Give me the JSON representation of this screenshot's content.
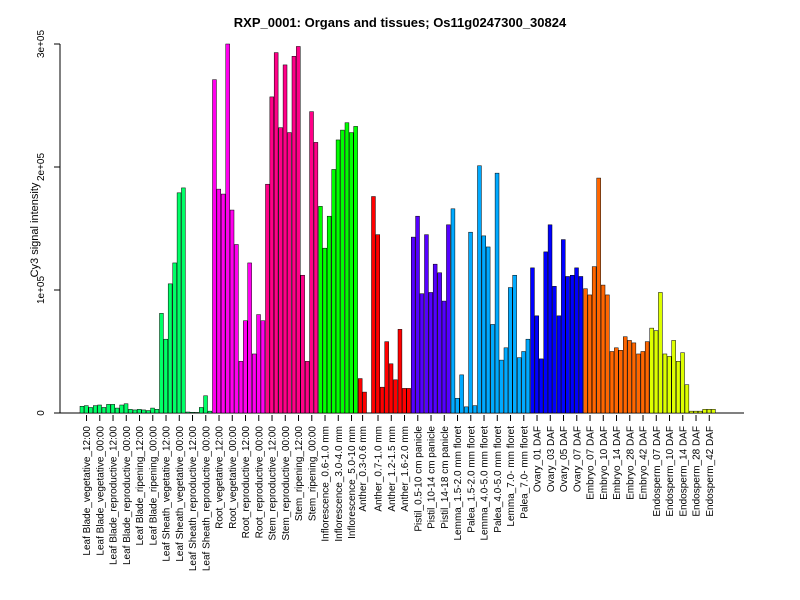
{
  "chart_data": {
    "type": "bar",
    "title": "RXP_0001: Organs and tissues; Os11g0247300_30824",
    "xlabel": "",
    "ylabel": "Cy3 signal intensity",
    "ylim": [
      0,
      300000
    ],
    "yticks": [
      {
        "value": 0,
        "label": "0"
      },
      {
        "value": 100000,
        "label": "1e+05"
      },
      {
        "value": 200000,
        "label": "2e+05"
      },
      {
        "value": 300000,
        "label": "3e+05"
      }
    ],
    "grid": false,
    "legend": "none",
    "groups": [
      {
        "label": "Leaf Blade_vegetative_12:00",
        "color": "#00ff66",
        "values": [
          5500,
          6000,
          4500
        ]
      },
      {
        "label": "Leaf Blade_vegetative_00:00",
        "color": "#00ff66",
        "values": [
          6000,
          6500,
          4500
        ]
      },
      {
        "label": "Leaf Blade_reproductive_12:00",
        "color": "#00ff66",
        "values": [
          7000,
          7000,
          4000
        ]
      },
      {
        "label": "Leaf Blade_reproductive_00:00",
        "color": "#00ff66",
        "values": [
          6500,
          7500,
          3000
        ]
      },
      {
        "label": "Leaf Blade_ripening_12:00",
        "color": "#00ff66",
        "values": [
          2500,
          3000,
          2500
        ]
      },
      {
        "label": "Leaf Blade_ripening_00:00",
        "color": "#00ff66",
        "values": [
          2000,
          4000,
          3000
        ]
      },
      {
        "label": "Leaf Sheath_vegetative_12:00",
        "color": "#00ff66",
        "values": [
          81000,
          60000,
          105000
        ]
      },
      {
        "label": "Leaf Sheath_vegetative_00:00",
        "color": "#00ff66",
        "values": [
          122000,
          179000,
          183000
        ]
      },
      {
        "label": "Leaf Sheath_reproductive_12:00",
        "color": "#00ff66",
        "values": [
          800,
          600,
          500
        ]
      },
      {
        "label": "Leaf Sheath_reproductive_00:00",
        "color": "#00ff66",
        "values": [
          4500,
          14000,
          1500
        ]
      },
      {
        "label": "Root_vegetative_12:00",
        "color": "#ff00ee",
        "values": [
          271000,
          182000,
          178000
        ]
      },
      {
        "label": "Root_vegetative_00:00",
        "color": "#ff00ee",
        "values": [
          300000,
          165000,
          137000
        ]
      },
      {
        "label": "Root_reproductive_12:00",
        "color": "#ff00ee",
        "values": [
          42000,
          75000,
          122000
        ]
      },
      {
        "label": "Root_reproductive_00:00",
        "color": "#ff00ee",
        "values": [
          48000,
          80000,
          75000
        ]
      },
      {
        "label": "Stem_reproductive_12:00",
        "color": "#ff0088",
        "values": [
          186000,
          257000,
          293000
        ]
      },
      {
        "label": "Stem_reproductive_00:00",
        "color": "#ff0088",
        "values": [
          232000,
          283000,
          228000
        ]
      },
      {
        "label": "Stem_ripening_12:00",
        "color": "#ff0088",
        "values": [
          290000,
          298000,
          112000
        ]
      },
      {
        "label": "Stem_ripening_00:00",
        "color": "#ff0088",
        "values": [
          42000,
          245000,
          220000
        ]
      },
      {
        "label": "Inflorescence_0.6-1.0 mm",
        "color": "#00ff00",
        "values": [
          168000,
          134000,
          160000
        ]
      },
      {
        "label": "Inflorescence_3.0-4.0 mm",
        "color": "#00ff00",
        "values": [
          198000,
          222000,
          230000
        ]
      },
      {
        "label": "Inflorescence_5.0-10 mm",
        "color": "#00ff00",
        "values": [
          236000,
          228000,
          233000
        ]
      },
      {
        "label": "Anther_0.3-0.6 mm",
        "color": "#ff0000",
        "values": [
          28000,
          17000
        ]
      },
      {
        "label": "Anther_0.7-1.0 mm",
        "color": "#ff0000",
        "values": [
          176000,
          145000,
          21000
        ]
      },
      {
        "label": "Anther_1.2-1.5 mm",
        "color": "#ff0000",
        "values": [
          58000,
          40000,
          27000
        ]
      },
      {
        "label": "Anther_1.6-2.0 mm",
        "color": "#ff0000",
        "values": [
          68000,
          20000,
          20000
        ]
      },
      {
        "label": "Pistil_0.5-10 cm panicle",
        "color": "#5500ff",
        "values": [
          143000,
          160000,
          97000
        ]
      },
      {
        "label": "Pistil_10-14 cm panicle",
        "color": "#5500ff",
        "values": [
          145000,
          98000,
          121000
        ]
      },
      {
        "label": "Pistil_14-18 cm panicle",
        "color": "#5500ff",
        "values": [
          114000,
          91000,
          153000
        ]
      },
      {
        "label": "Lemma_1.5-2.0 mm floret",
        "color": "#00aaff",
        "values": [
          166000,
          12000,
          31000
        ]
      },
      {
        "label": "Palea_1.5-2.0 mm floret",
        "color": "#00aaff",
        "values": [
          5000,
          147000,
          6000
        ]
      },
      {
        "label": "Lemma_4.0-5.0 mm floret",
        "color": "#00aaff",
        "values": [
          201000,
          144000,
          135000
        ]
      },
      {
        "label": "Palea_4.0-5.0 mm floret",
        "color": "#00aaff",
        "values": [
          72000,
          195000,
          43000
        ]
      },
      {
        "label": "Lemma_7.0- mm floret",
        "color": "#00aaff",
        "values": [
          53000,
          102000,
          112000
        ]
      },
      {
        "label": "Palea_7.0- mm floret",
        "color": "#00aaff",
        "values": [
          45000,
          50000,
          60000
        ]
      },
      {
        "label": "Ovary_01 DAF",
        "color": "#0000ff",
        "values": [
          118000,
          79000,
          44000
        ]
      },
      {
        "label": "Ovary_03 DAF",
        "color": "#0000ff",
        "values": [
          131000,
          153000,
          103000
        ]
      },
      {
        "label": "Ovary_05 DAF",
        "color": "#0000ff",
        "values": [
          79000,
          141000,
          111000
        ]
      },
      {
        "label": "Ovary_07 DAF",
        "color": "#0000ff",
        "values": [
          112000,
          118000,
          111000
        ]
      },
      {
        "label": "Embryo_07 DAF",
        "color": "#ff6600",
        "values": [
          101000,
          96000,
          119000
        ]
      },
      {
        "label": "Embryo_10 DAF",
        "color": "#ff6600",
        "values": [
          191000,
          104000,
          96000
        ]
      },
      {
        "label": "Embryo_14 DAF",
        "color": "#ff6600",
        "values": [
          50000,
          53000,
          51000
        ]
      },
      {
        "label": "Embryo_28 DAF",
        "color": "#ff6600",
        "values": [
          62000,
          59000,
          57000
        ]
      },
      {
        "label": "Embryo_42 DAF",
        "color": "#ff6600",
        "values": [
          48000,
          50000,
          58000
        ]
      },
      {
        "label": "Endosperm_07 DAF",
        "color": "#ddff00",
        "values": [
          69000,
          67000,
          98000
        ]
      },
      {
        "label": "Endosperm_10 DAF",
        "color": "#ddff00",
        "values": [
          48000,
          46000,
          59000
        ]
      },
      {
        "label": "Endosperm_14 DAF",
        "color": "#ddff00",
        "values": [
          42000,
          49000,
          23000
        ]
      },
      {
        "label": "Endosperm_28 DAF",
        "color": "#ddff00",
        "values": [
          1500,
          1500,
          1500
        ]
      },
      {
        "label": "Endosperm_42 DAF",
        "color": "#ddff00",
        "values": [
          3000,
          3000,
          3000
        ]
      }
    ]
  }
}
